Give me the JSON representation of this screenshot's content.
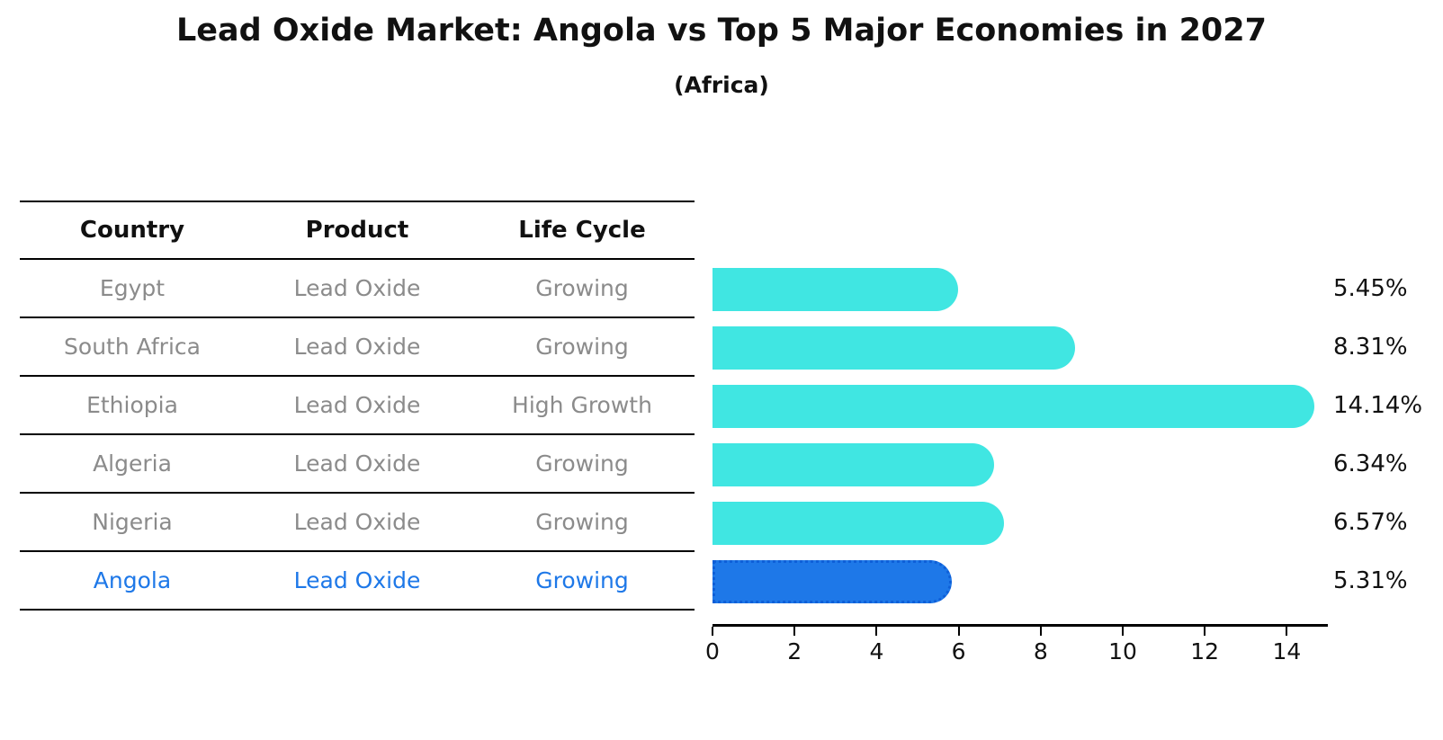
{
  "chart_data": {
    "type": "bar",
    "orientation": "horizontal",
    "title": "Lead Oxide Market: Angola vs Top 5 Major Economies in 2027",
    "subtitle": "(Africa)",
    "columns": [
      "Country",
      "Product",
      "Life Cycle"
    ],
    "rows": [
      {
        "country": "Egypt",
        "product": "Lead Oxide",
        "life_cycle": "Growing",
        "value": 5.45,
        "label": "5.45%",
        "highlight": false
      },
      {
        "country": "South Africa",
        "product": "Lead Oxide",
        "life_cycle": "Growing",
        "value": 8.31,
        "label": "8.31%",
        "highlight": false
      },
      {
        "country": "Ethiopia",
        "product": "Lead Oxide",
        "life_cycle": "High Growth",
        "value": 14.14,
        "label": "14.14%",
        "highlight": false
      },
      {
        "country": "Algeria",
        "product": "Lead Oxide",
        "life_cycle": "Growing",
        "value": 6.34,
        "label": "6.34%",
        "highlight": false
      },
      {
        "country": "Nigeria",
        "product": "Lead Oxide",
        "life_cycle": "Growing",
        "value": 6.57,
        "label": "6.57%",
        "highlight": false
      },
      {
        "country": "Angola",
        "product": "Lead Oxide",
        "life_cycle": "Growing",
        "value": 5.31,
        "label": "5.31%",
        "highlight": true
      }
    ],
    "x_ticks": [
      0,
      2,
      4,
      6,
      8,
      10,
      12,
      14
    ],
    "xlim": [
      0,
      15
    ],
    "xlabel": "",
    "ylabel": "",
    "grid": false,
    "legend": "none"
  },
  "colors": {
    "bar_cyan": "#40E6E2",
    "accent_blue": "#1E78E8",
    "accent_border": "#0E5FD8",
    "row_text_gray": "#8B8B8B",
    "text_black": "#111111"
  }
}
